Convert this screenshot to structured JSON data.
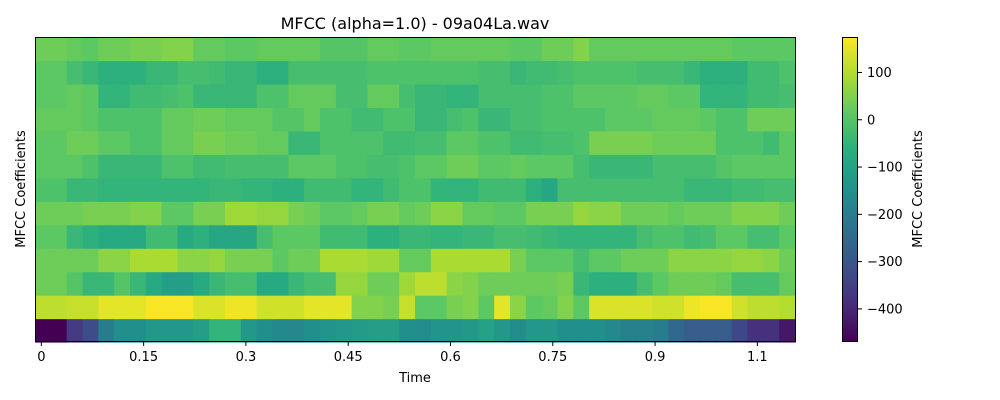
{
  "chart_data": {
    "type": "heatmap",
    "title": "MFCC (alpha=1.0) - 09a04La.wav",
    "xlabel": "Time",
    "ylabel": "MFCC Coefficients",
    "colorbar_label": "MFCC Coefficients",
    "colormap": "viridis",
    "x_range": [
      -0.0093,
      1.1052
    ],
    "x_ticks": [
      0,
      0.15,
      0.3,
      0.45,
      0.6,
      0.75,
      0.9,
      1.05
    ],
    "x_tick_labels": [
      "0",
      "0.15",
      "0.3",
      "0.45",
      "0.6",
      "0.75",
      "0.9",
      "1.1"
    ],
    "color_range": [
      -470,
      175
    ],
    "colorbar_ticks": [
      100,
      0,
      -100,
      -200,
      -300,
      -400
    ],
    "colorbar_tick_labels": [
      "100",
      "0",
      "−100",
      "−200",
      "−300",
      "−400"
    ],
    "n_frames": 48,
    "n_coefficients": 13,
    "values_note": "",
    "values": [
      [
        -470,
        -470,
        -360,
        -320,
        -200,
        -150,
        -150,
        -130,
        -130,
        -130,
        -110,
        -50,
        -50,
        -130,
        -150,
        -170,
        -170,
        -150,
        -140,
        -130,
        -120,
        -110,
        -110,
        -150,
        -160,
        -140,
        -140,
        -130,
        -100,
        -130,
        -160,
        -130,
        -130,
        -150,
        -150,
        -150,
        -170,
        -190,
        -190,
        -200,
        -250,
        -280,
        -280,
        -280,
        -330,
        -380,
        -380,
        -430
      ],
      [
        110,
        110,
        120,
        120,
        150,
        150,
        150,
        170,
        170,
        170,
        140,
        140,
        160,
        160,
        130,
        130,
        130,
        150,
        150,
        150,
        50,
        50,
        40,
        120,
        10,
        10,
        40,
        50,
        10,
        150,
        60,
        10,
        20,
        50,
        10,
        140,
        140,
        140,
        140,
        130,
        130,
        160,
        170,
        170,
        130,
        110,
        110,
        100
      ],
      [
        30,
        30,
        0,
        -40,
        -40,
        0,
        -40,
        -80,
        -110,
        -110,
        -80,
        -40,
        -20,
        -20,
        -80,
        -80,
        -40,
        -20,
        -20,
        70,
        70,
        30,
        30,
        80,
        110,
        110,
        60,
        50,
        30,
        30,
        30,
        30,
        30,
        40,
        -40,
        -60,
        -60,
        -60,
        -20,
        10,
        30,
        30,
        30,
        20,
        -20,
        -20,
        -20,
        20
      ],
      [
        30,
        30,
        30,
        30,
        60,
        60,
        90,
        90,
        90,
        60,
        60,
        70,
        40,
        40,
        40,
        10,
        30,
        30,
        90,
        90,
        90,
        80,
        80,
        20,
        20,
        90,
        90,
        90,
        90,
        90,
        40,
        10,
        10,
        10,
        -20,
        10,
        10,
        30,
        30,
        30,
        60,
        60,
        60,
        60,
        70,
        70,
        60,
        30
      ],
      [
        10,
        10,
        -40,
        -60,
        -80,
        -80,
        -80,
        -30,
        -30,
        -80,
        -60,
        -90,
        -90,
        -90,
        -20,
        10,
        10,
        10,
        -30,
        -30,
        -30,
        -60,
        -60,
        -40,
        -40,
        -50,
        -50,
        -40,
        -40,
        -20,
        -20,
        -30,
        -40,
        -50,
        -50,
        -50,
        -50,
        -50,
        -20,
        -10,
        -10,
        -30,
        -20,
        10,
        10,
        -20,
        -20,
        10
      ],
      [
        30,
        30,
        30,
        40,
        40,
        40,
        50,
        50,
        10,
        10,
        40,
        40,
        80,
        80,
        70,
        70,
        40,
        30,
        10,
        10,
        20,
        40,
        40,
        20,
        30,
        60,
        60,
        20,
        20,
        10,
        10,
        40,
        40,
        40,
        70,
        60,
        60,
        30,
        30,
        30,
        20,
        30,
        30,
        30,
        50,
        50,
        50,
        30
      ],
      [
        -10,
        -10,
        -40,
        -40,
        -50,
        -50,
        -50,
        -50,
        -50,
        -50,
        -50,
        -40,
        -40,
        -50,
        -50,
        -60,
        -60,
        -30,
        -30,
        -30,
        -50,
        -50,
        -30,
        -10,
        -10,
        -50,
        -50,
        -50,
        -30,
        -30,
        -30,
        -60,
        -90,
        -20,
        -20,
        -20,
        -20,
        -20,
        -20,
        -20,
        -20,
        -40,
        -40,
        -40,
        -30,
        -30,
        -20,
        -20
      ],
      [
        10,
        10,
        10,
        -10,
        -40,
        -40,
        -40,
        -40,
        -10,
        -10,
        -30,
        -30,
        -20,
        -20,
        -20,
        -20,
        10,
        10,
        10,
        -10,
        -10,
        -20,
        -20,
        -10,
        10,
        10,
        30,
        30,
        10,
        10,
        20,
        10,
        10,
        10,
        -20,
        -40,
        -40,
        -40,
        -40,
        -20,
        -20,
        -20,
        -20,
        0,
        10,
        10,
        10,
        10
      ],
      [
        10,
        10,
        30,
        30,
        10,
        10,
        -10,
        -10,
        20,
        20,
        40,
        40,
        30,
        30,
        20,
        20,
        -40,
        -40,
        -10,
        -10,
        -10,
        -10,
        -30,
        -30,
        -20,
        -20,
        10,
        10,
        -10,
        -10,
        -30,
        -30,
        -20,
        -20,
        -10,
        40,
        40,
        40,
        40,
        30,
        30,
        30,
        30,
        -10,
        -10,
        -10,
        -30,
        10
      ],
      [
        20,
        20,
        20,
        10,
        -10,
        -10,
        -10,
        -10,
        20,
        20,
        30,
        30,
        20,
        20,
        20,
        0,
        0,
        20,
        -10,
        -10,
        -30,
        -30,
        -10,
        -10,
        -40,
        -40,
        -20,
        -10,
        -40,
        -40,
        -20,
        -20,
        -10,
        -10,
        -10,
        -10,
        10,
        10,
        10,
        20,
        20,
        20,
        10,
        -10,
        -10,
        30,
        30,
        30
      ],
      [
        10,
        10,
        20,
        10,
        -50,
        -50,
        -30,
        -30,
        -20,
        -10,
        -40,
        -40,
        -40,
        -40,
        -10,
        -10,
        20,
        20,
        20,
        -20,
        -20,
        20,
        20,
        -20,
        -40,
        -40,
        -50,
        -50,
        -20,
        -20,
        -20,
        -20,
        -10,
        -10,
        10,
        10,
        10,
        10,
        20,
        20,
        10,
        10,
        -50,
        -50,
        -50,
        -30,
        -30,
        -20
      ],
      [
        10,
        10,
        -20,
        -40,
        -60,
        -60,
        -60,
        -40,
        -40,
        -20,
        -20,
        -30,
        -40,
        -40,
        -60,
        -60,
        -20,
        -20,
        -20,
        -20,
        -20,
        -10,
        -10,
        -10,
        -10,
        -10,
        -10,
        -10,
        -20,
        -20,
        -40,
        -30,
        -30,
        -20,
        -10,
        -10,
        -10,
        -10,
        -20,
        -20,
        -20,
        -40,
        -60,
        -60,
        -60,
        -30,
        -30,
        -10
      ],
      [
        30,
        30,
        20,
        10,
        30,
        30,
        40,
        40,
        50,
        50,
        20,
        20,
        10,
        10,
        20,
        20,
        20,
        20,
        0,
        0,
        0,
        20,
        20,
        10,
        10,
        20,
        20,
        20,
        20,
        20,
        10,
        10,
        30,
        30,
        50,
        20,
        20,
        20,
        20,
        20,
        20,
        20,
        20,
        20,
        10,
        10,
        10,
        10
      ]
    ]
  }
}
